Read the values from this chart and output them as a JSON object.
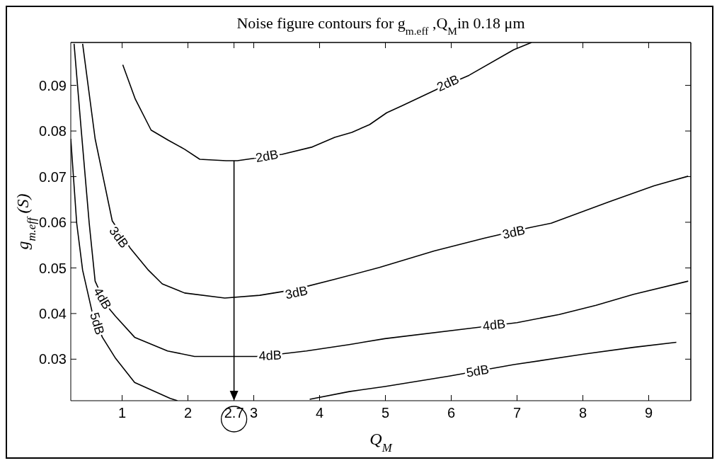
{
  "chart_data": {
    "type": "line",
    "title": "Noise figure contours for g$_{m.eff}$ ,Q$_{M}$in  0.18 μm",
    "xlabel": "Q$_{M}$",
    "ylabel": "g$_{m.eff}$ (S)",
    "xlim": [
      0.22,
      9.64
    ],
    "ylim": [
      0.0209,
      0.0994
    ],
    "xticks": [
      1,
      2,
      2.7,
      3,
      4,
      5,
      6,
      7,
      8,
      9
    ],
    "ref_lines": [
      {
        "axis": "x",
        "value": 2.7
      }
    ],
    "yticks": [
      0.03,
      0.04,
      0.05,
      0.06,
      0.07,
      0.08,
      0.09
    ],
    "grid": false,
    "legend": false,
    "marker": "none",
    "line_style": "solid",
    "series": [
      {
        "color": "#000000",
        "x": [
          1.01,
          1.2,
          1.44,
          1.7,
          1.95,
          2.18,
          2.58,
          2.75,
          3.43,
          3.89,
          4.23,
          4.49,
          4.76,
          5.02,
          5.25,
          5.82,
          6.27,
          6.95,
          7.22
        ],
        "values": [
          0.0945,
          0.087,
          0.0802,
          0.078,
          0.076,
          0.0738,
          0.0735,
          0.0735,
          0.0749,
          0.0765,
          0.0786,
          0.0797,
          0.0814,
          0.084,
          0.0855,
          0.0894,
          0.0922,
          0.0978,
          0.0994
        ]
      },
      {
        "color": "#000000",
        "x": [
          0.4,
          0.59,
          0.85,
          1.13,
          1.4,
          1.61,
          1.95,
          2.56,
          3.09,
          3.6,
          4.23,
          4.91,
          5.74,
          6.5,
          7.18,
          7.52,
          8.4,
          9.08,
          9.6
        ],
        "values": [
          0.0991,
          0.0783,
          0.0603,
          0.0542,
          0.0495,
          0.0465,
          0.0445,
          0.0434,
          0.044,
          0.0452,
          0.0475,
          0.0501,
          0.0537,
          0.0565,
          0.0588,
          0.0598,
          0.0645,
          0.068,
          0.0701
        ]
      },
      {
        "color": "#000000",
        "x": [
          0.27,
          0.38,
          0.5,
          0.59,
          0.75,
          0.9,
          1.19,
          1.69,
          2.1,
          3.09,
          3.8,
          4.45,
          4.99,
          6.31,
          7,
          7.64,
          8.2,
          8.77,
          9.6
        ],
        "values": [
          0.0991,
          0.08,
          0.0598,
          0.0471,
          0.042,
          0.0394,
          0.0348,
          0.0318,
          0.0306,
          0.0306,
          0.0318,
          0.0332,
          0.0345,
          0.0368,
          0.038,
          0.0398,
          0.0418,
          0.0442,
          0.0471
        ]
      },
      {
        "color": "#000000",
        "x": [
          0.22,
          0.31,
          0.4,
          0.55,
          0.7,
          0.9,
          1.19,
          1.73,
          1.84,
          2.5,
          3.85,
          4.45,
          4.99,
          5.97,
          6.95,
          8.01,
          8.77,
          9.42
        ],
        "values": [
          0.0783,
          0.0598,
          0.0495,
          0.04,
          0.0348,
          0.0302,
          0.0249,
          0.0214,
          0.0209,
          null,
          0.0212,
          0.0229,
          0.024,
          0.0263,
          0.0288,
          0.0311,
          0.0326,
          0.0337
        ]
      }
    ],
    "annotations": [
      {
        "text": "2dB",
        "x": 3.2,
        "y": 0.0745
      },
      {
        "text": "2dB",
        "x": 5.95,
        "y": 0.0905
      },
      {
        "text": "3dB",
        "x": 0.95,
        "y": 0.0567
      },
      {
        "text": "3dB",
        "x": 3.65,
        "y": 0.0446
      },
      {
        "text": "3dB",
        "x": 6.95,
        "y": 0.0578
      },
      {
        "text": "4dB",
        "x": 0.7,
        "y": 0.0433
      },
      {
        "text": "4dB",
        "x": 3.25,
        "y": 0.0308
      },
      {
        "text": "4dB",
        "x": 6.65,
        "y": 0.0375
      },
      {
        "text": "5dB",
        "x": 0.62,
        "y": 0.0378
      },
      {
        "text": "5dB",
        "x": 6.4,
        "y": 0.0274
      }
    ]
  }
}
